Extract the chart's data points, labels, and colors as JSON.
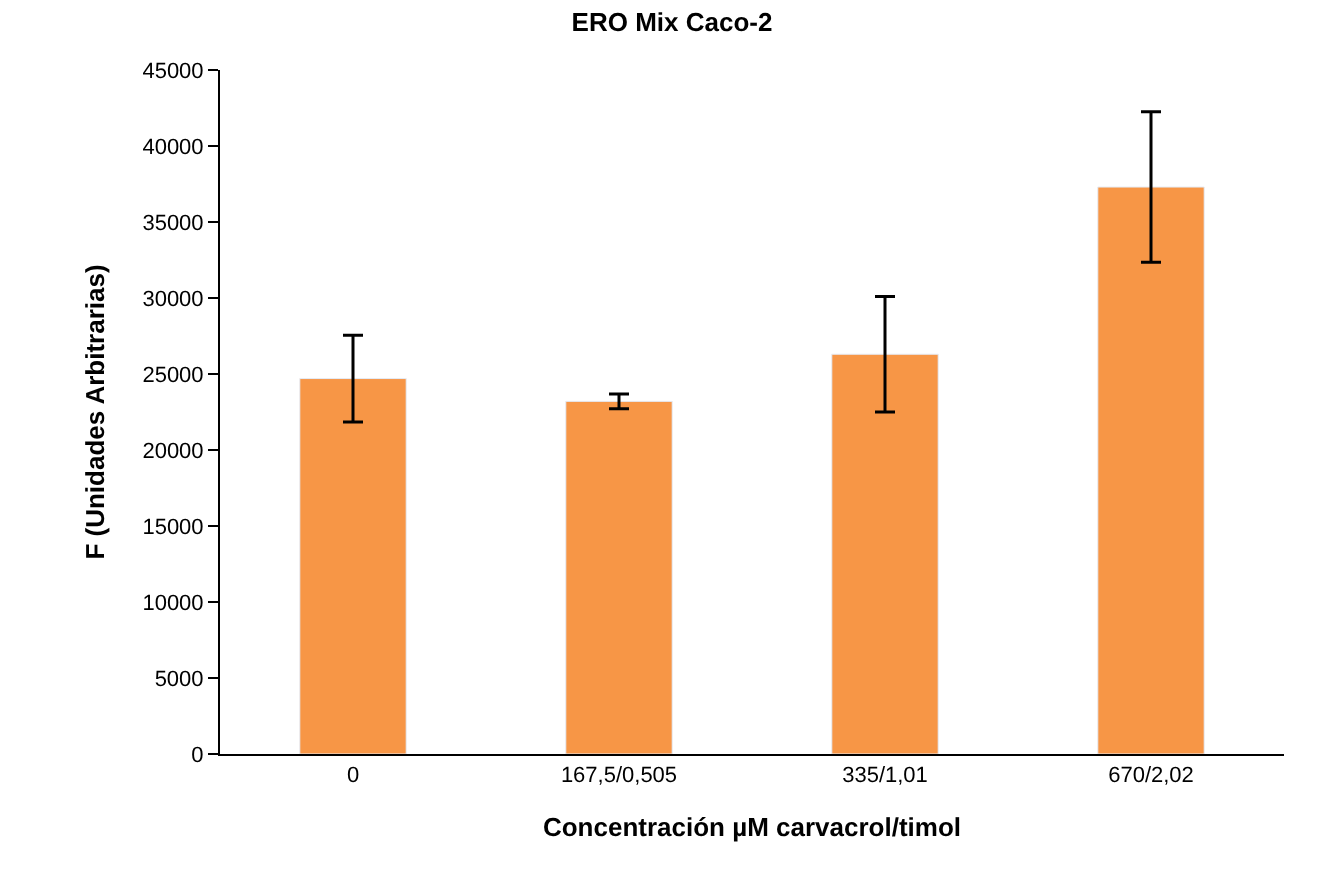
{
  "chart_data": {
    "type": "bar",
    "title": "ERO Mix Caco-2",
    "xlabel": "Concentración µM carvacrol/timol",
    "ylabel": "F (Unidades Arbitrarias)",
    "categories": [
      "0",
      "167,5/0,505",
      "335/1,01",
      "670/2,02"
    ],
    "values": [
      24700,
      23200,
      26300,
      37300
    ],
    "errors": [
      2850,
      480,
      3800,
      4950
    ],
    "color": "#f79646",
    "ylim": [
      0,
      45000
    ],
    "yticks": [
      0,
      5000,
      10000,
      15000,
      20000,
      25000,
      30000,
      35000,
      40000,
      45000
    ]
  }
}
